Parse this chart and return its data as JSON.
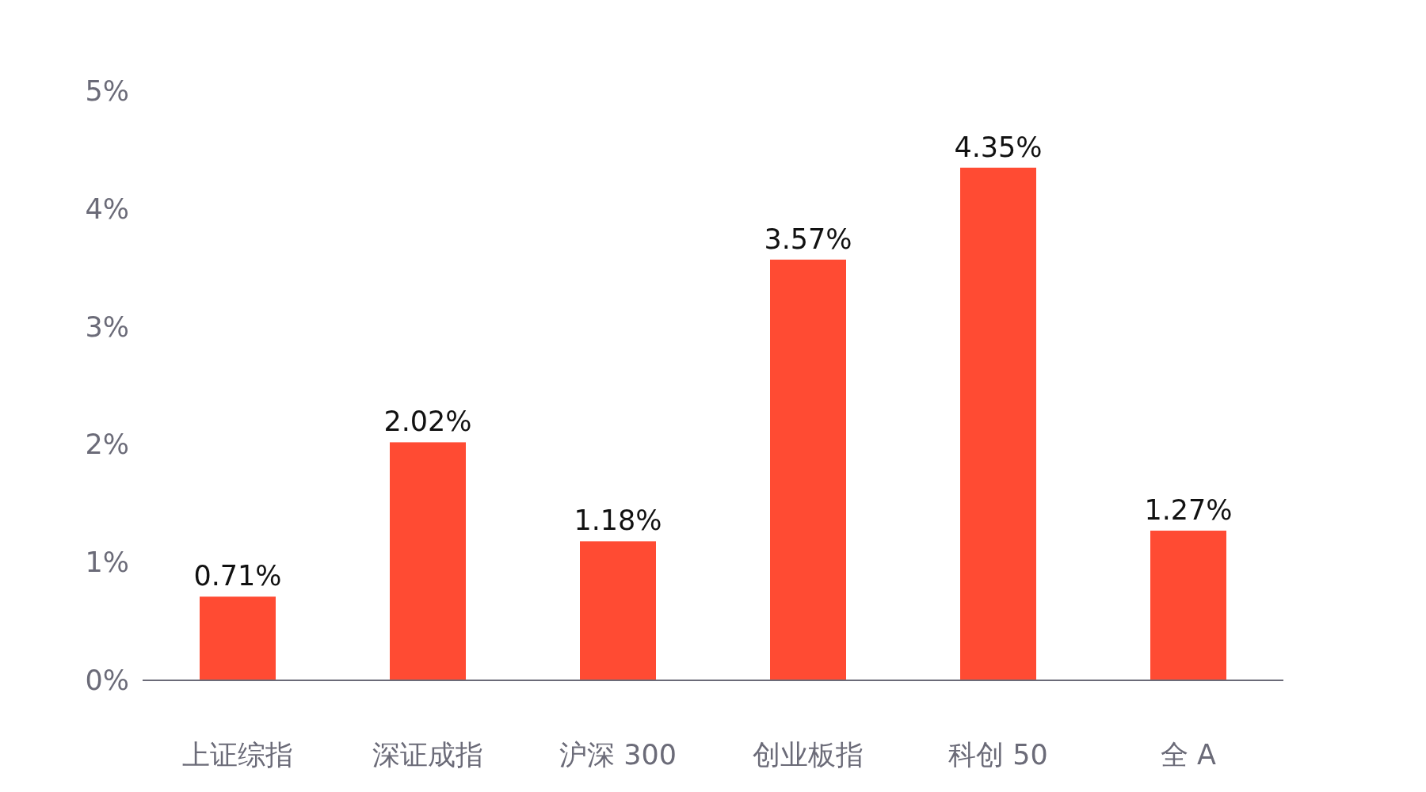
{
  "chart_data": {
    "type": "bar",
    "categories": [
      "上证综指",
      "深证成指",
      "沪深 300",
      "创业板指",
      "科创 50",
      "全 A"
    ],
    "values": [
      0.71,
      2.02,
      1.18,
      3.57,
      4.35,
      1.27
    ],
    "value_labels": [
      "0.71%",
      "2.02%",
      "1.18%",
      "3.57%",
      "4.35%",
      "1.27%"
    ],
    "color": "#ff4b33",
    "ylim": [
      0,
      5
    ],
    "yticks": [
      {
        "value": 0,
        "label": "0%"
      },
      {
        "value": 1,
        "label": "1%"
      },
      {
        "value": 2,
        "label": "2%"
      },
      {
        "value": 3,
        "label": "3%"
      },
      {
        "value": 4,
        "label": "4%"
      },
      {
        "value": 5,
        "label": "5%"
      }
    ],
    "grid": false
  }
}
